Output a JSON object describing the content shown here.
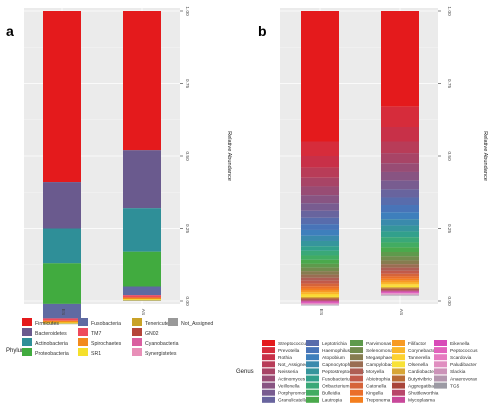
{
  "chart_data": [
    {
      "panel_label": "a",
      "type": "bar",
      "stacked": true,
      "categories": [
        "ES",
        "AS"
      ],
      "ylabel": "Relative Abundance",
      "ylim": [
        0,
        1
      ],
      "yticks": [
        "0.00",
        "0.25",
        "0.50",
        "0.75",
        "1.00"
      ],
      "legend_title": "Phylum",
      "legend_position": "bottom",
      "grid": true,
      "series": [
        {
          "name": "Firmicutes",
          "color": "#e41a1c",
          "values": [
            0.59,
            0.48
          ]
        },
        {
          "name": "Bacteroidetes",
          "color": "#6a5a8e",
          "values": [
            0.16,
            0.2
          ]
        },
        {
          "name": "Actinobacteria",
          "color": "#2f8f98",
          "values": [
            0.12,
            0.15
          ]
        },
        {
          "name": "Proteobacteria",
          "color": "#41ab3f",
          "values": [
            0.14,
            0.12
          ]
        },
        {
          "name": "Fusobacteria",
          "color": "#5f6aa2",
          "values": [
            0.05,
            0.03
          ]
        },
        {
          "name": "TM7",
          "color": "#ee4a5c",
          "values": [
            0.008,
            0.008
          ]
        },
        {
          "name": "Spirochaetes",
          "color": "#f28a1c",
          "values": [
            0.006,
            0.006
          ]
        },
        {
          "name": "SR1",
          "color": "#f5e02c",
          "values": [
            0.004,
            0.004
          ]
        },
        {
          "name": "Tenericutes",
          "color": "#c9a227",
          "values": [
            0,
            0
          ]
        },
        {
          "name": "GN02",
          "color": "#b5453a",
          "values": [
            0,
            0
          ]
        },
        {
          "name": "Cyanobacteria",
          "color": "#d95fa0",
          "values": [
            0,
            0
          ]
        },
        {
          "name": "Synergistetes",
          "color": "#e88fb8",
          "values": [
            0,
            0
          ]
        },
        {
          "name": "Not_Assigned",
          "color": "#999999",
          "values": [
            0.002,
            0.002
          ]
        }
      ]
    },
    {
      "panel_label": "b",
      "type": "bar",
      "stacked": true,
      "categories": [
        "ES",
        "AS"
      ],
      "ylabel": "Relative Abundance",
      "ylim": [
        0,
        1
      ],
      "yticks": [
        "0.00",
        "0.25",
        "0.50",
        "0.75",
        "1.00"
      ],
      "legend_title": "Genus",
      "legend_position": "bottom",
      "grid": true,
      "series": [
        {
          "name": "Streptococcus",
          "color": "#e41a1c",
          "values": [
            0.45,
            0.33
          ]
        },
        {
          "name": "Prevotella",
          "color": "#d62c3b",
          "values": [
            0.05,
            0.07
          ]
        },
        {
          "name": "Rothia",
          "color": "#c83048",
          "values": [
            0.04,
            0.05
          ]
        },
        {
          "name": "Not_Assigned",
          "color": "#b83c58",
          "values": [
            0.035,
            0.04
          ]
        },
        {
          "name": "Neisseria",
          "color": "#a84466",
          "values": [
            0.03,
            0.035
          ]
        },
        {
          "name": "Actinomyces",
          "color": "#984c74",
          "values": [
            0.03,
            0.03
          ]
        },
        {
          "name": "Veillonella",
          "color": "#885482",
          "values": [
            0.028,
            0.03
          ]
        },
        {
          "name": "Porphyromonas",
          "color": "#785c90",
          "values": [
            0.026,
            0.03
          ]
        },
        {
          "name": "Granulicatella",
          "color": "#68649e",
          "values": [
            0.024,
            0.028
          ]
        },
        {
          "name": "Leptotrichia",
          "color": "#586cac",
          "values": [
            0.022,
            0.026
          ]
        },
        {
          "name": "Haemophilus",
          "color": "#4874b8",
          "values": [
            0.02,
            0.025
          ]
        },
        {
          "name": "Atopobium",
          "color": "#3e7fbc",
          "values": [
            0.02,
            0.024
          ]
        },
        {
          "name": "Capnocytophaga",
          "color": "#3a8aac",
          "values": [
            0.018,
            0.022
          ]
        },
        {
          "name": "Peptostreptococcus",
          "color": "#36959c",
          "values": [
            0.018,
            0.02
          ]
        },
        {
          "name": "Fusobacterium",
          "color": "#32a08c",
          "values": [
            0.016,
            0.02
          ]
        },
        {
          "name": "Oribacterium",
          "color": "#3aa878",
          "values": [
            0.016,
            0.018
          ]
        },
        {
          "name": "Bulleidia",
          "color": "#42ac62",
          "values": [
            0.015,
            0.017
          ]
        },
        {
          "name": "Lautropia",
          "color": "#4aa94c",
          "values": [
            0.014,
            0.016
          ]
        },
        {
          "name": "Parvimonas",
          "color": "#5e9a4c",
          "values": [
            0.013,
            0.015
          ]
        },
        {
          "name": "Selenomonas",
          "color": "#728b4e",
          "values": [
            0.012,
            0.014
          ]
        },
        {
          "name": "Megasphaera",
          "color": "#867c50",
          "values": [
            0.012,
            0.013
          ]
        },
        {
          "name": "Campylobacter",
          "color": "#9a6d52",
          "values": [
            0.011,
            0.012
          ]
        },
        {
          "name": "Moryella",
          "color": "#ae5e54",
          "values": [
            0.01,
            0.011
          ]
        },
        {
          "name": "Abiotrophia",
          "color": "#c25a4a",
          "values": [
            0.01,
            0.01
          ]
        },
        {
          "name": "Catonella",
          "color": "#d6643a",
          "values": [
            0.009,
            0.009
          ]
        },
        {
          "name": "Kingella",
          "color": "#ea6e2a",
          "values": [
            0.008,
            0.008
          ]
        },
        {
          "name": "Treponema",
          "color": "#f47e1e",
          "values": [
            0.007,
            0.007
          ]
        },
        {
          "name": "Filifactor",
          "color": "#f79a24",
          "values": [
            0.006,
            0.006
          ]
        },
        {
          "name": "Corynebacterium",
          "color": "#fab62a",
          "values": [
            0.006,
            0.006
          ]
        },
        {
          "name": "Tannerella",
          "color": "#fdd230",
          "values": [
            0.005,
            0.005
          ]
        },
        {
          "name": "Olsenella",
          "color": "#f8e236",
          "values": [
            0.005,
            0.005
          ]
        },
        {
          "name": "Cardiobacterium",
          "color": "#d8a636",
          "values": [
            0.004,
            0.004
          ]
        },
        {
          "name": "Butyrivibrio",
          "color": "#b86a36",
          "values": [
            0.004,
            0.004
          ]
        },
        {
          "name": "Aggregatibacter",
          "color": "#a8443a",
          "values": [
            0.003,
            0.003
          ]
        },
        {
          "name": "Shuttleworthia",
          "color": "#b8466a",
          "values": [
            0.003,
            0.003
          ]
        },
        {
          "name": "Mycoplasma",
          "color": "#c8489a",
          "values": [
            0.003,
            0.003
          ]
        },
        {
          "name": "Eikenella",
          "color": "#d84ab8",
          "values": [
            0.002,
            0.002
          ]
        },
        {
          "name": "Peptococcus",
          "color": "#e262bc",
          "values": [
            0.002,
            0.002
          ]
        },
        {
          "name": "Scardovia",
          "color": "#e67ac0",
          "values": [
            0.002,
            0.002
          ]
        },
        {
          "name": "Paludibacter",
          "color": "#e08ec0",
          "values": [
            0.002,
            0.002
          ]
        },
        {
          "name": "Slackia",
          "color": "#cc92b8",
          "values": [
            0.002,
            0.002
          ]
        },
        {
          "name": "Anaerovorax",
          "color": "#b496ae",
          "values": [
            0.001,
            0.001
          ]
        },
        {
          "name": "TG5",
          "color": "#9c9aa4",
          "values": [
            0.001,
            0.001
          ]
        }
      ]
    }
  ]
}
